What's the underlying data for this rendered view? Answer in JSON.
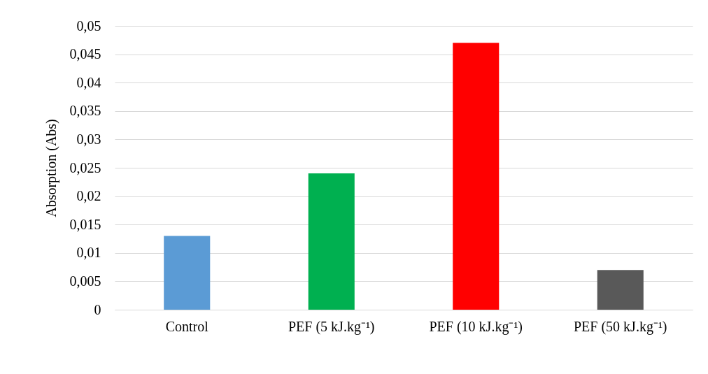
{
  "chart_data": {
    "type": "bar",
    "ylabel": "Absorption (Abs)",
    "categories": [
      "Control",
      "PEF (5 kJ.kg⁻¹)",
      "PEF (10 kJ.kg⁻¹)",
      "PEF (50 kJ.kg⁻¹)"
    ],
    "values": [
      0.013,
      0.024,
      0.047,
      0.007
    ],
    "colors": [
      "#5b9bd5",
      "#00b050",
      "#ff0000",
      "#595959"
    ],
    "ylim": [
      0,
      0.05
    ],
    "yticks": [
      {
        "value": 0,
        "label": "0"
      },
      {
        "value": 0.005,
        "label": "0,005"
      },
      {
        "value": 0.01,
        "label": "0,01"
      },
      {
        "value": 0.015,
        "label": "0,015"
      },
      {
        "value": 0.02,
        "label": "0,02"
      },
      {
        "value": 0.025,
        "label": "0,025"
      },
      {
        "value": 0.03,
        "label": "0,03"
      },
      {
        "value": 0.035,
        "label": "0,035"
      },
      {
        "value": 0.04,
        "label": "0,04"
      },
      {
        "value": 0.045,
        "label": "0,045"
      },
      {
        "value": 0.05,
        "label": "0,05"
      }
    ],
    "grid": "y"
  }
}
